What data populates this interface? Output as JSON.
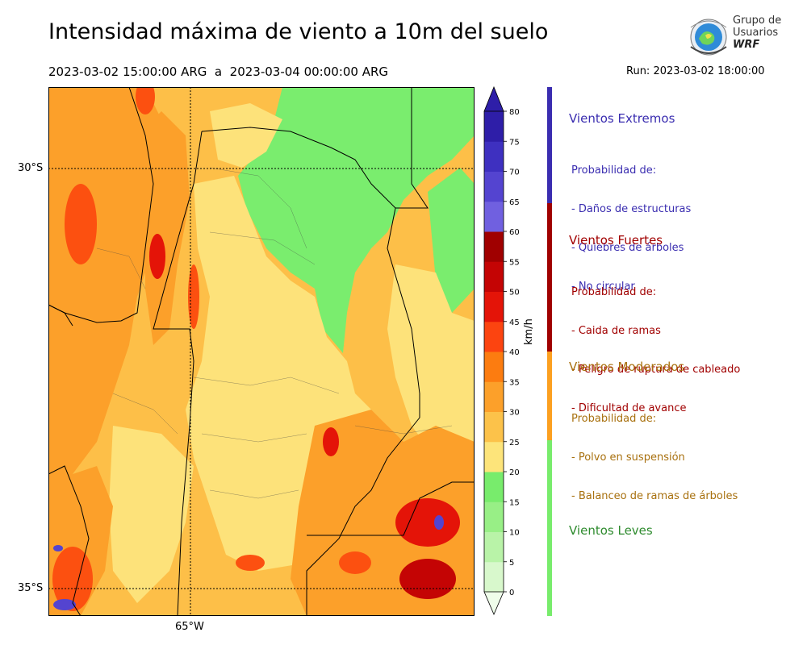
{
  "title": "Intensidad máxima de viento a 10m del suelo",
  "subtitle": "2023-03-02 15:00:00 ARG  a  2023-03-04 00:00:00 ARG",
  "run": "Run: 2023-03-02 18:00:00",
  "logo": {
    "line1": "Grupo de",
    "line2": "Usuarios",
    "line3": "WRF"
  },
  "axes": {
    "lat_labels": [
      "30°S",
      "35°S"
    ],
    "lon_labels": [
      "65°W"
    ]
  },
  "colorbar": {
    "unit_label": "km/h",
    "ticks": [
      "0",
      "5",
      "10",
      "15",
      "20",
      "25",
      "30",
      "35",
      "40",
      "45",
      "50",
      "55",
      "60",
      "65",
      "70",
      "75",
      "80"
    ],
    "colors": [
      "#effdea",
      "#d8f8cc",
      "#b9f3a8",
      "#98ef86",
      "#78ec6c",
      "#fde47a",
      "#fcc24a",
      "#fca02a",
      "#fc7c10",
      "#fc4410",
      "#e41408",
      "#c40404",
      "#a00000",
      "#7060e0",
      "#5444d0",
      "#3e30c0",
      "#2e1ea8"
    ]
  },
  "categories": [
    {
      "name": "Vientos Extremos",
      "color": "#3a2db0",
      "lines": [
        "Probabilidad de:",
        "- Daños de estructuras",
        "- Quiebres de árboles",
        "- No circular"
      ]
    },
    {
      "name": "Vientos Fuertes",
      "color": "#a10000",
      "lines": [
        "Probabilidad de:",
        "- Caida de ramas",
        "- Peligro de ruptura de cableado",
        "- Dificultad de avance"
      ]
    },
    {
      "name": "Vientos Moderados",
      "color": "#a8700e",
      "lines": [
        "Probabilidad de:",
        "- Polvo en suspensión",
        "- Balanceo de ramas de árboles"
      ]
    },
    {
      "name": "Vientos Leves",
      "color": "#2e8b2e",
      "lines": []
    }
  ],
  "legend_bar_colors": [
    "#3a2db0",
    "#a00000",
    "#fca020",
    "#78ec6c"
  ]
}
